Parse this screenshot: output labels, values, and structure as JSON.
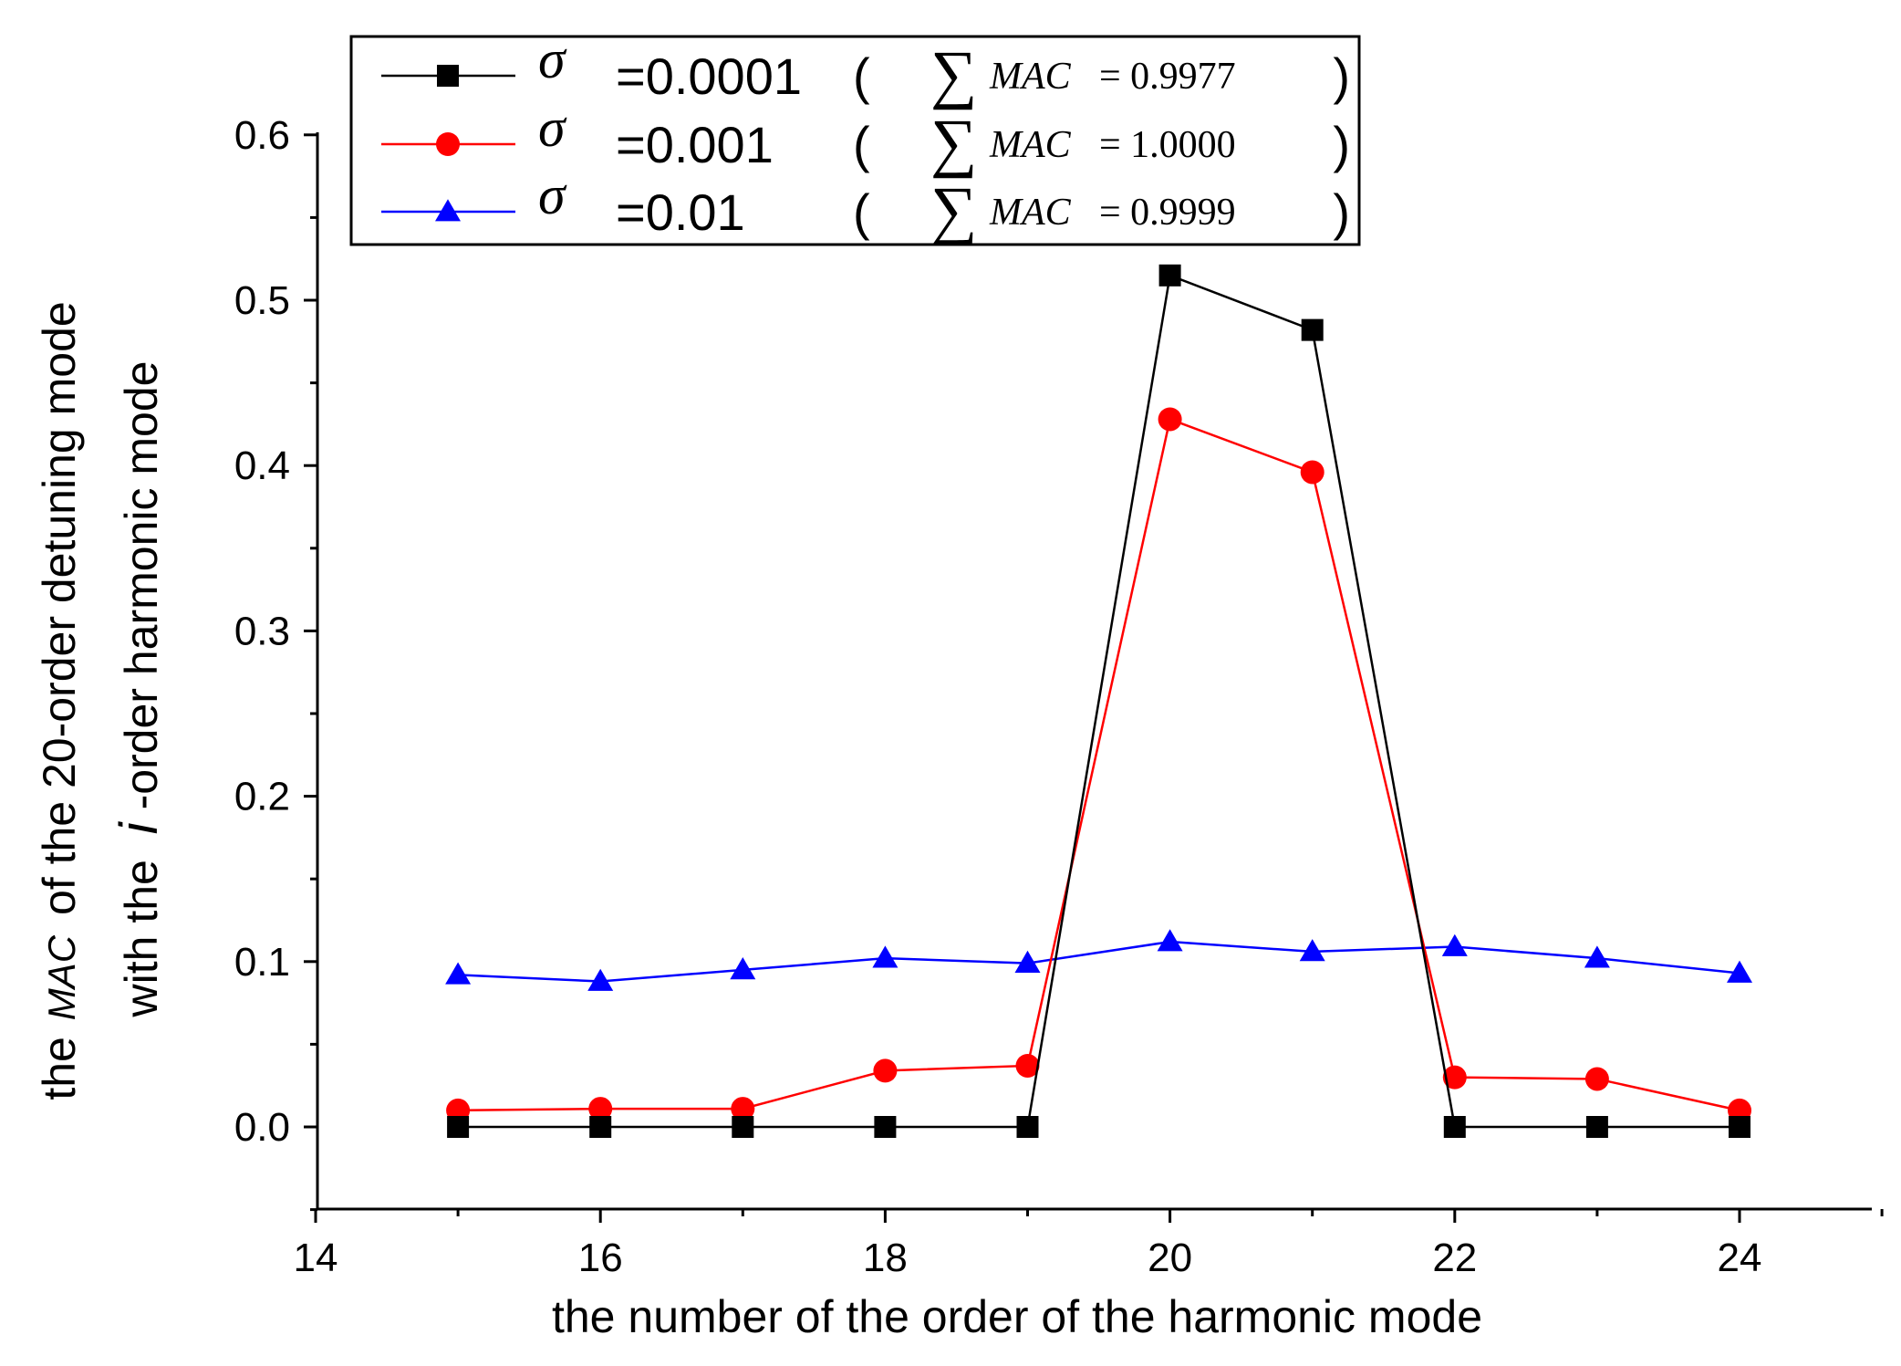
{
  "chart_data": {
    "type": "line",
    "xlabel": "the number of the order of the harmonic mode",
    "ylabel_line1": {
      "prefix": "the",
      "italic": "MAC",
      "suffix": "of the 20-order detuning mode"
    },
    "ylabel_line2": {
      "prefix": "with the",
      "italic": "i",
      "suffix": "-order harmonic mode"
    },
    "xlim": [
      14,
      25
    ],
    "ylim": [
      -0.05,
      0.6
    ],
    "x_ticks": [
      14,
      16,
      18,
      20,
      22,
      24
    ],
    "y_ticks": [
      0.0,
      0.1,
      0.2,
      0.3,
      0.4,
      0.5,
      0.6
    ],
    "x_tick_labels": [
      "14",
      "16",
      "18",
      "20",
      "22",
      "24"
    ],
    "y_tick_labels": [
      "0.0",
      "0.1",
      "0.2",
      "0.3",
      "0.4",
      "0.5",
      "0.6"
    ],
    "grid": false,
    "legend_position": "top",
    "x": [
      15,
      16,
      17,
      18,
      19,
      20,
      21,
      22,
      23,
      24
    ],
    "series": [
      {
        "sigma_symbol": "σ",
        "sigma_value": "=0.0001",
        "open_paren": "(",
        "sum_symbol": "∑",
        "mac_label": "MAC",
        "mac_eq": "= 0.9977",
        "close_paren": ")",
        "color": "#000000",
        "marker": "square",
        "values": [
          0.0,
          0.0,
          0.0,
          0.0,
          0.0,
          0.515,
          0.482,
          0.0,
          0.0,
          0.0
        ]
      },
      {
        "sigma_symbol": "σ",
        "sigma_value": "=0.001",
        "open_paren": "(",
        "sum_symbol": "∑",
        "mac_label": "MAC",
        "mac_eq": "= 1.0000",
        "close_paren": ")",
        "color": "#ff0000",
        "marker": "circle",
        "values": [
          0.01,
          0.011,
          0.011,
          0.034,
          0.037,
          0.428,
          0.396,
          0.03,
          0.029,
          0.01
        ]
      },
      {
        "sigma_symbol": "σ",
        "sigma_value": "=0.01",
        "open_paren": "(",
        "sum_symbol": "∑",
        "mac_label": "MAC",
        "mac_eq": "= 0.9999",
        "close_paren": ")",
        "color": "#0000ff",
        "marker": "triangle",
        "values": [
          0.092,
          0.088,
          0.095,
          0.102,
          0.099,
          0.112,
          0.106,
          0.109,
          0.102,
          0.093
        ]
      }
    ]
  }
}
